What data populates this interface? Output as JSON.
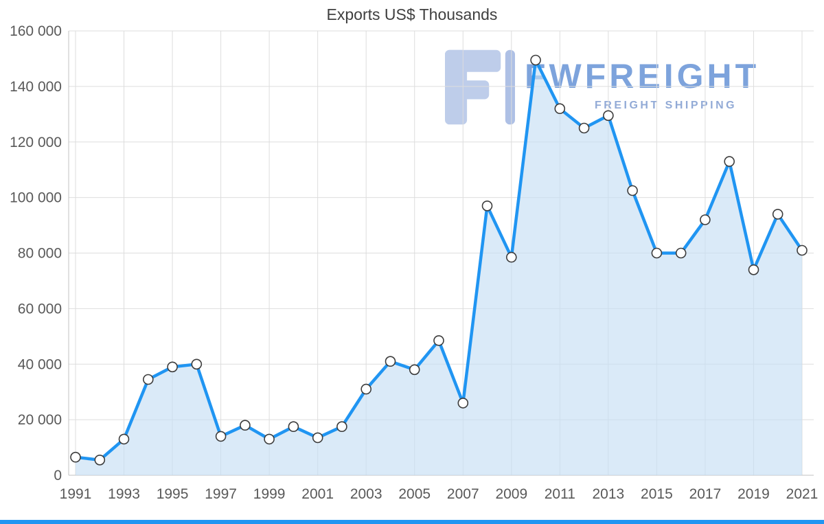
{
  "title": "Exports US$ Thousands",
  "watermark": {
    "brand": "FWFREIGHT",
    "tagline": "FREIGHT SHIPPING"
  },
  "chart_data": {
    "type": "area",
    "title": "Exports US$ Thousands",
    "x": [
      1991,
      1992,
      1993,
      1994,
      1995,
      1996,
      1997,
      1998,
      1999,
      2000,
      2001,
      2002,
      2003,
      2004,
      2005,
      2006,
      2007,
      2008,
      2009,
      2010,
      2011,
      2012,
      2013,
      2014,
      2015,
      2016,
      2017,
      2018,
      2019,
      2020,
      2021
    ],
    "values": [
      6500,
      5500,
      13000,
      34500,
      39000,
      40000,
      14000,
      18000,
      13000,
      17500,
      13500,
      17500,
      31000,
      41000,
      38000,
      48500,
      26000,
      97000,
      78500,
      149500,
      132000,
      125000,
      129500,
      102500,
      80000,
      80000,
      92000,
      113000,
      74000,
      94000,
      81000
    ],
    "x_ticks": [
      1991,
      1993,
      1995,
      1997,
      1999,
      2001,
      2003,
      2005,
      2007,
      2009,
      2011,
      2013,
      2015,
      2017,
      2019,
      2021
    ],
    "y_ticks": [
      0,
      20000,
      40000,
      60000,
      80000,
      100000,
      120000,
      140000,
      160000
    ],
    "ylim": [
      0,
      160000
    ],
    "xlabel": "",
    "ylabel": "",
    "grid": true,
    "legend": "none",
    "colors": {
      "line": "#2095f2",
      "area": "#c6dff4",
      "marker_fill": "#ffffff",
      "marker_stroke": "#3c3c3c",
      "grid": "#dddddd",
      "axis": "#c2c2c2",
      "text": "#595959",
      "title": "#3f3f3f",
      "watermark": "#2e6bc8",
      "bottom_bar": "#2095f2"
    }
  }
}
